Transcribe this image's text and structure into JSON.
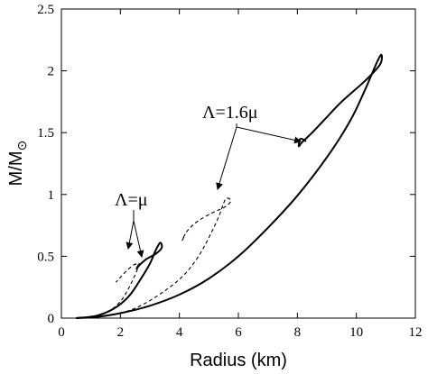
{
  "chart_data": {
    "type": "line",
    "title": "",
    "xlabel": "Radius (km)",
    "ylabel_main": "M/M",
    "ylabel_sub": "⊙",
    "xlim": [
      0,
      12
    ],
    "ylim": [
      0,
      2.5
    ],
    "xticks": [
      0,
      2,
      4,
      6,
      8,
      10,
      12
    ],
    "yticks": [
      0,
      0.5,
      1,
      1.5,
      2,
      2.5
    ],
    "ytick_labels": [
      "0",
      "0.5",
      "1",
      "1.5",
      "2",
      "2.5"
    ],
    "grid": false,
    "legend": "none",
    "annotations": [
      {
        "id": "lambda-mu",
        "text": "Λ=μ"
      },
      {
        "id": "lambda-1-6mu",
        "text": "Λ=1.6μ"
      }
    ],
    "series": [
      {
        "label_ref": "Λ=1.6μ",
        "style": "solid",
        "points": [
          [
            0.5,
            0
          ],
          [
            1.2,
            0.01
          ],
          [
            2,
            0.04
          ],
          [
            3,
            0.1
          ],
          [
            4,
            0.19
          ],
          [
            5,
            0.32
          ],
          [
            6,
            0.5
          ],
          [
            7,
            0.73
          ],
          [
            8,
            0.99
          ],
          [
            9,
            1.3
          ],
          [
            9.8,
            1.6
          ],
          [
            10.3,
            1.85
          ],
          [
            10.7,
            2.07
          ],
          [
            10.85,
            2.13
          ],
          [
            10.8,
            2.05
          ],
          [
            10.3,
            1.92
          ],
          [
            9.5,
            1.75
          ],
          [
            8.9,
            1.6
          ],
          [
            8.5,
            1.5
          ],
          [
            8.15,
            1.42
          ],
          [
            8.05,
            1.39
          ],
          [
            8.1,
            1.45
          ],
          [
            8.3,
            1.43
          ]
        ]
      },
      {
        "label_ref": "Λ=1.6μ",
        "style": "dashed",
        "points": [
          [
            0.5,
            0
          ],
          [
            1.5,
            0.02
          ],
          [
            2.5,
            0.08
          ],
          [
            3.5,
            0.22
          ],
          [
            4.2,
            0.36
          ],
          [
            4.7,
            0.52
          ],
          [
            5.1,
            0.7
          ],
          [
            5.35,
            0.83
          ],
          [
            5.5,
            0.93
          ],
          [
            5.6,
            0.97
          ],
          [
            5.75,
            0.95
          ],
          [
            5.55,
            0.9
          ],
          [
            5.1,
            0.85
          ],
          [
            4.6,
            0.78
          ],
          [
            4.25,
            0.7
          ],
          [
            4.1,
            0.63
          ],
          [
            4.2,
            0.68
          ]
        ]
      },
      {
        "label_ref": "Λ=μ",
        "style": "solid",
        "points": [
          [
            0.5,
            0
          ],
          [
            1.2,
            0.02
          ],
          [
            1.8,
            0.08
          ],
          [
            2.3,
            0.18
          ],
          [
            2.7,
            0.32
          ],
          [
            3,
            0.44
          ],
          [
            3.2,
            0.55
          ],
          [
            3.35,
            0.61
          ],
          [
            3.4,
            0.57
          ],
          [
            3.2,
            0.52
          ],
          [
            2.9,
            0.48
          ],
          [
            2.65,
            0.43
          ],
          [
            2.55,
            0.4
          ],
          [
            2.65,
            0.44
          ]
        ]
      },
      {
        "label_ref": "Λ=μ",
        "style": "dashed",
        "points": [
          [
            0.5,
            0
          ],
          [
            1.2,
            0.02
          ],
          [
            1.7,
            0.07
          ],
          [
            2.05,
            0.15
          ],
          [
            2.3,
            0.25
          ],
          [
            2.5,
            0.35
          ],
          [
            2.6,
            0.41
          ],
          [
            2.65,
            0.44
          ],
          [
            2.45,
            0.43
          ],
          [
            2.2,
            0.38
          ],
          [
            2.0,
            0.33
          ],
          [
            1.85,
            0.29
          ]
        ]
      }
    ]
  }
}
